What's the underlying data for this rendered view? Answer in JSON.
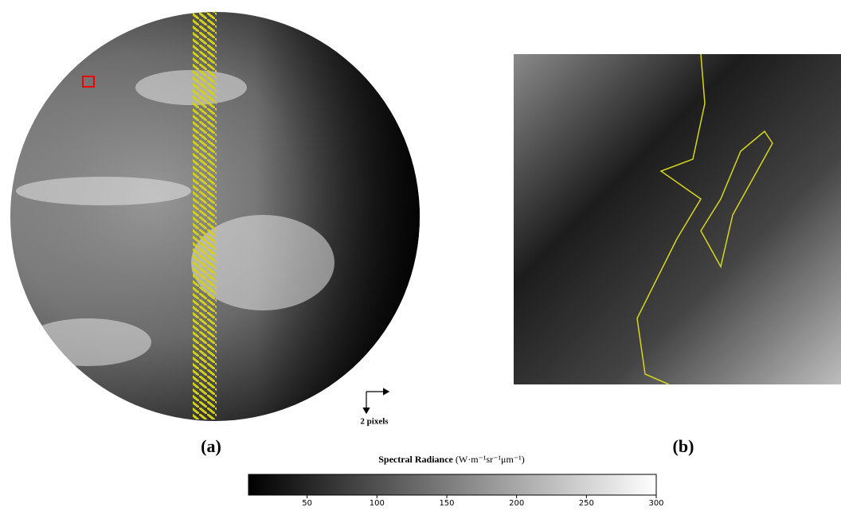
{
  "panel_a": {
    "label": "(a)",
    "scale_label": "2 pixels"
  },
  "panel_b": {
    "label": "(b)"
  },
  "colorbar": {
    "title": "Spectral Radiance",
    "unit": "(W·m⁻¹sr⁻¹μm⁻¹)",
    "range": [
      8,
      300
    ],
    "ticks": [
      50,
      100,
      150,
      200,
      250,
      300
    ]
  }
}
